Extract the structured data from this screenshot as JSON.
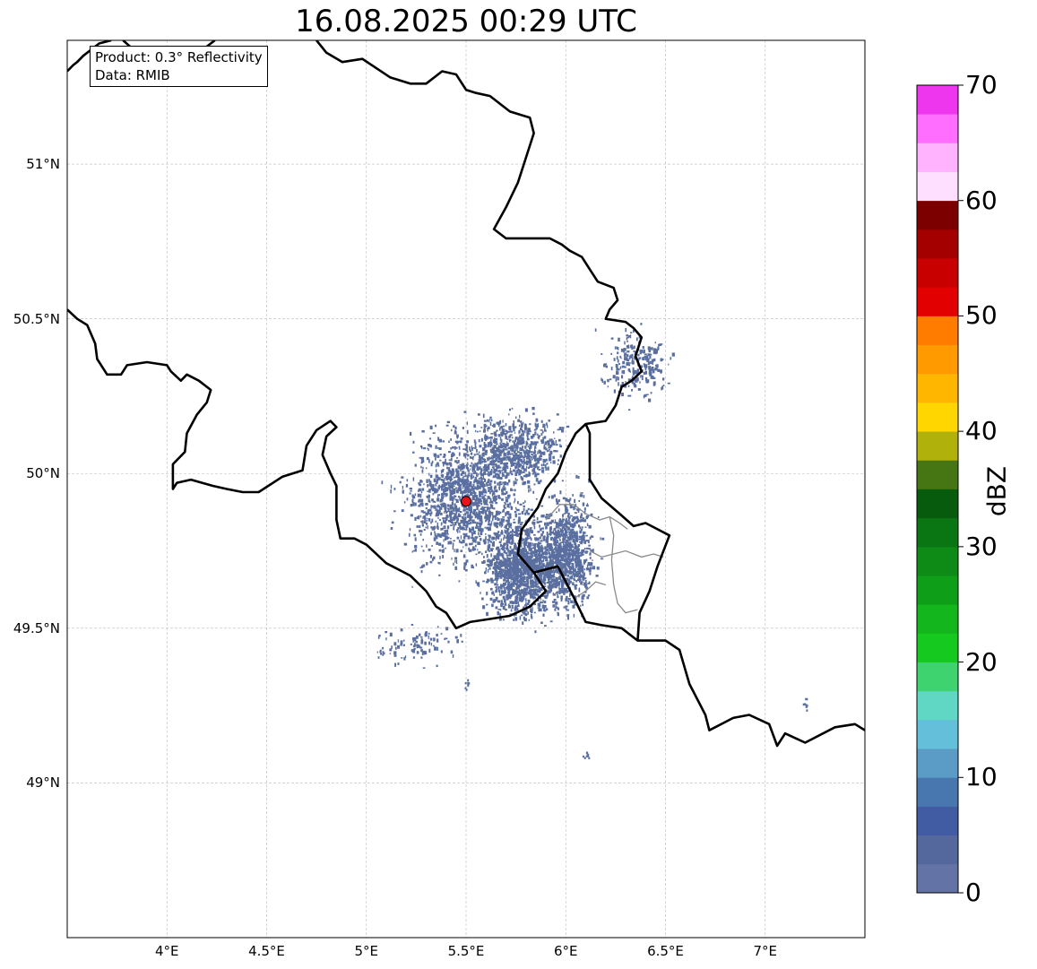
{
  "title": "16.08.2025 00:29 UTC",
  "info": {
    "product_line": "Product: 0.3° Reflectivity",
    "data_line": "Data: RMIB"
  },
  "map": {
    "extent": {
      "lon": [
        3.5,
        7.5
      ],
      "lat": [
        48.5,
        51.4
      ]
    },
    "lat_ticks": [
      {
        "value": 49.0,
        "label": "49°N"
      },
      {
        "value": 49.5,
        "label": "49.5°N"
      },
      {
        "value": 50.0,
        "label": "50°N"
      },
      {
        "value": 50.5,
        "label": "50.5°N"
      },
      {
        "value": 51.0,
        "label": "51°N"
      }
    ],
    "lon_ticks": [
      {
        "value": 4.0,
        "label": "4°E"
      },
      {
        "value": 4.5,
        "label": "4.5°E"
      },
      {
        "value": 5.0,
        "label": "5°E"
      },
      {
        "value": 5.5,
        "label": "5.5°E"
      },
      {
        "value": 6.0,
        "label": "6°E"
      },
      {
        "value": 6.5,
        "label": "6.5°E"
      },
      {
        "value": 7.0,
        "label": "7°E"
      }
    ],
    "radar_site": {
      "lon": 5.5,
      "lat": 49.91,
      "color": "#e8141a"
    },
    "echo_color": "#5a6fa0",
    "grid": true,
    "borders": {
      "national": [
        [
          [
            3.5,
            51.3
          ],
          [
            3.53,
            51.32
          ],
          [
            3.55,
            51.33
          ],
          [
            3.58,
            51.35
          ],
          [
            3.62,
            51.37
          ],
          [
            3.66,
            51.39
          ],
          [
            3.72,
            51.4
          ]
        ],
        [
          [
            3.78,
            51.4
          ],
          [
            3.85,
            51.36
          ],
          [
            3.9,
            51.33
          ],
          [
            3.93,
            51.3
          ],
          [
            3.98,
            51.31
          ],
          [
            4.03,
            51.33
          ],
          [
            4.08,
            51.32
          ],
          [
            4.12,
            51.32
          ],
          [
            4.17,
            51.35
          ],
          [
            4.2,
            51.38
          ],
          [
            4.24,
            51.4
          ]
        ],
        [
          [
            4.75,
            51.4
          ],
          [
            4.8,
            51.36
          ],
          [
            4.88,
            51.33
          ],
          [
            4.98,
            51.34
          ],
          [
            5.05,
            51.31
          ],
          [
            5.12,
            51.28
          ],
          [
            5.22,
            51.26
          ],
          [
            5.3,
            51.26
          ],
          [
            5.38,
            51.3
          ],
          [
            5.45,
            51.29
          ],
          [
            5.5,
            51.24
          ],
          [
            5.55,
            51.23
          ],
          [
            5.62,
            51.22
          ],
          [
            5.72,
            51.17
          ],
          [
            5.82,
            51.15
          ],
          [
            5.84,
            51.1
          ],
          [
            5.79,
            51.0
          ],
          [
            5.76,
            50.94
          ],
          [
            5.7,
            50.86
          ],
          [
            5.64,
            50.79
          ],
          [
            5.7,
            50.76
          ],
          [
            5.82,
            50.76
          ],
          [
            5.92,
            50.76
          ],
          [
            5.98,
            50.74
          ],
          [
            6.02,
            50.72
          ],
          [
            6.08,
            50.7
          ],
          [
            6.12,
            50.66
          ],
          [
            6.16,
            50.62
          ],
          [
            6.24,
            50.6
          ],
          [
            6.26,
            50.56
          ],
          [
            6.22,
            50.53
          ],
          [
            6.2,
            50.5
          ],
          [
            6.3,
            50.49
          ],
          [
            6.34,
            50.47
          ],
          [
            6.38,
            50.44
          ],
          [
            6.35,
            50.38
          ],
          [
            6.38,
            50.33
          ],
          [
            6.33,
            50.3
          ],
          [
            6.28,
            50.28
          ],
          [
            6.25,
            50.22
          ],
          [
            6.2,
            50.17
          ],
          [
            6.1,
            50.16
          ],
          [
            6.05,
            50.13
          ],
          [
            6.0,
            50.07
          ],
          [
            5.96,
            50.0
          ],
          [
            5.9,
            49.95
          ],
          [
            5.86,
            49.89
          ],
          [
            5.78,
            49.82
          ],
          [
            5.76,
            49.74
          ],
          [
            5.84,
            49.68
          ],
          [
            5.9,
            49.62
          ],
          [
            5.82,
            49.57
          ],
          [
            5.72,
            49.54
          ],
          [
            5.62,
            49.53
          ],
          [
            5.52,
            49.52
          ],
          [
            5.45,
            49.5
          ],
          [
            5.4,
            49.55
          ],
          [
            5.35,
            49.57
          ],
          [
            5.3,
            49.62
          ],
          [
            5.22,
            49.67
          ],
          [
            5.1,
            49.71
          ],
          [
            5.0,
            49.77
          ],
          [
            4.94,
            49.79
          ],
          [
            4.87,
            49.79
          ],
          [
            4.85,
            49.85
          ],
          [
            4.85,
            49.9
          ],
          [
            4.85,
            49.96
          ],
          [
            4.82,
            50.0
          ],
          [
            4.78,
            50.06
          ],
          [
            4.8,
            50.12
          ],
          [
            4.85,
            50.15
          ],
          [
            4.82,
            50.17
          ],
          [
            4.75,
            50.14
          ],
          [
            4.7,
            50.09
          ],
          [
            4.68,
            50.01
          ],
          [
            4.58,
            49.99
          ],
          [
            4.46,
            49.94
          ],
          [
            4.38,
            49.94
          ],
          [
            4.3,
            49.95
          ],
          [
            4.23,
            49.96
          ],
          [
            4.12,
            49.98
          ],
          [
            4.05,
            49.97
          ],
          [
            4.03,
            49.95
          ],
          [
            4.03,
            50.03
          ],
          [
            4.09,
            50.07
          ],
          [
            4.1,
            50.13
          ],
          [
            4.15,
            50.19
          ],
          [
            4.2,
            50.23
          ],
          [
            4.22,
            50.27
          ],
          [
            4.16,
            50.3
          ],
          [
            4.1,
            50.32
          ],
          [
            4.07,
            50.3
          ],
          [
            4.02,
            50.33
          ],
          [
            4.0,
            50.35
          ],
          [
            3.9,
            50.36
          ],
          [
            3.8,
            50.35
          ],
          [
            3.77,
            50.32
          ],
          [
            3.7,
            50.32
          ],
          [
            3.65,
            50.37
          ],
          [
            3.64,
            50.42
          ],
          [
            3.6,
            50.48
          ],
          [
            3.55,
            50.5
          ],
          [
            3.5,
            50.53
          ]
        ],
        [
          [
            5.84,
            49.68
          ],
          [
            5.96,
            49.7
          ],
          [
            6.04,
            49.6
          ],
          [
            6.1,
            49.52
          ],
          [
            6.18,
            49.51
          ],
          [
            6.28,
            49.5
          ],
          [
            6.36,
            49.46
          ],
          [
            6.5,
            49.46
          ],
          [
            6.57,
            49.43
          ],
          [
            6.62,
            49.32
          ],
          [
            6.7,
            49.22
          ],
          [
            6.72,
            49.17
          ],
          [
            6.84,
            49.21
          ],
          [
            6.92,
            49.22
          ],
          [
            7.02,
            49.19
          ],
          [
            7.06,
            49.12
          ],
          [
            7.1,
            49.16
          ],
          [
            7.2,
            49.13
          ],
          [
            7.35,
            49.18
          ],
          [
            7.45,
            49.19
          ],
          [
            7.5,
            49.17
          ]
        ],
        [
          [
            6.36,
            49.46
          ],
          [
            6.37,
            49.55
          ],
          [
            6.42,
            49.62
          ],
          [
            6.46,
            49.7
          ],
          [
            6.52,
            49.8
          ],
          [
            6.46,
            49.82
          ],
          [
            6.4,
            49.84
          ],
          [
            6.34,
            49.83
          ],
          [
            6.27,
            49.87
          ],
          [
            6.18,
            49.92
          ],
          [
            6.12,
            49.98
          ],
          [
            6.12,
            50.05
          ],
          [
            6.12,
            50.13
          ],
          [
            6.1,
            50.16
          ]
        ]
      ],
      "regional": [
        [
          [
            5.9,
            49.85
          ],
          [
            5.97,
            49.9
          ],
          [
            6.04,
            49.9
          ],
          [
            6.1,
            49.87
          ],
          [
            6.17,
            49.85
          ],
          [
            6.22,
            49.86
          ],
          [
            6.27,
            49.84
          ],
          [
            6.31,
            49.82
          ]
        ],
        [
          [
            6.12,
            49.75
          ],
          [
            6.18,
            49.73
          ],
          [
            6.24,
            49.74
          ],
          [
            6.3,
            49.75
          ],
          [
            6.38,
            49.73
          ],
          [
            6.44,
            49.74
          ],
          [
            6.49,
            49.73
          ]
        ],
        [
          [
            6.22,
            49.86
          ],
          [
            6.24,
            49.8
          ],
          [
            6.23,
            49.72
          ],
          [
            6.24,
            49.64
          ],
          [
            6.26,
            49.58
          ],
          [
            6.3,
            49.55
          ],
          [
            6.36,
            49.56
          ]
        ],
        [
          [
            6.05,
            49.6
          ],
          [
            6.1,
            49.62
          ],
          [
            6.15,
            49.65
          ],
          [
            6.2,
            49.64
          ]
        ]
      ]
    }
  },
  "colorbar": {
    "label": "dBZ",
    "min": 0,
    "max": 70,
    "step": 2.5,
    "tick_labels": [
      "0",
      "10",
      "20",
      "30",
      "40",
      "50",
      "60",
      "70"
    ],
    "colors": [
      "#6473a6",
      "#55689d",
      "#425ca3",
      "#4877b0",
      "#5a9cc5",
      "#64bfdb",
      "#60d7c4",
      "#3fd370",
      "#16c91e",
      "#13b61c",
      "#0e9e18",
      "#0e8a16",
      "#0a7513",
      "#075b0c",
      "#467514",
      "#b1b10b",
      "#ffd600",
      "#ffb600",
      "#ff9a00",
      "#ff7c00",
      "#e30000",
      "#c80000",
      "#a40000",
      "#7d0000",
      "#ffdfff",
      "#ffb3ff",
      "#ff6eff",
      "#ee36ee"
    ]
  }
}
